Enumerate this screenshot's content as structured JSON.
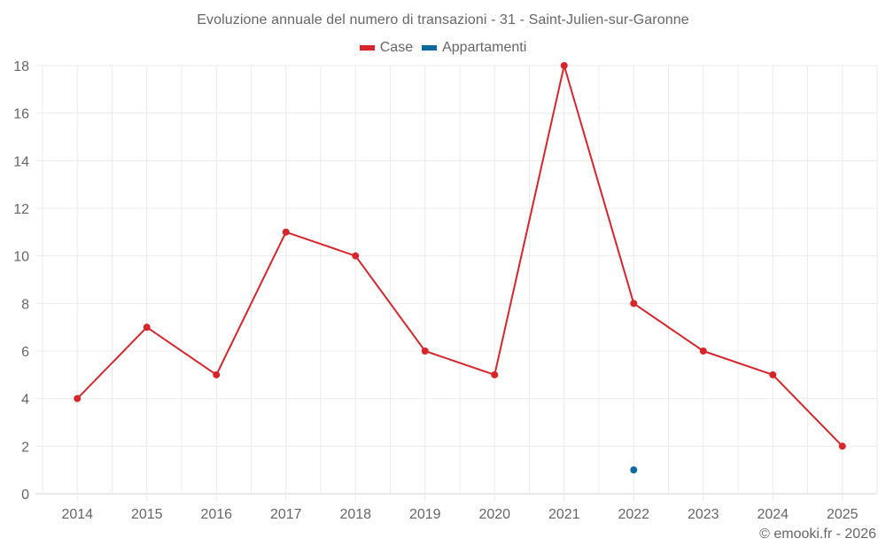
{
  "title": "Evoluzione annuale del numero di transazioni - 31 - Saint-Julien-sur-Garonne",
  "legend": [
    {
      "label": "Case",
      "color": "#d7262b"
    },
    {
      "label": "Appartamenti",
      "color": "#0a6aa1"
    }
  ],
  "credit": "© emooki.fr - 2026",
  "chart_data": {
    "type": "line",
    "title": "Evoluzione annuale del numero di transazioni - 31 - Saint-Julien-sur-Garonne",
    "xlabel": "",
    "ylabel": "",
    "categories": [
      "2014",
      "2015",
      "2016",
      "2017",
      "2018",
      "2019",
      "2020",
      "2021",
      "2022",
      "2023",
      "2024",
      "2025"
    ],
    "series": [
      {
        "name": "Case",
        "color": "#d7262b",
        "values": [
          4,
          7,
          5,
          11,
          10,
          6,
          5,
          18,
          8,
          6,
          5,
          2
        ]
      },
      {
        "name": "Appartamenti",
        "color": "#0a6aa1",
        "values": [
          null,
          null,
          null,
          null,
          null,
          null,
          null,
          null,
          1,
          null,
          null,
          null
        ]
      }
    ],
    "ylim": [
      0,
      18
    ],
    "yticks": [
      0,
      2,
      4,
      6,
      8,
      10,
      12,
      14,
      16,
      18
    ],
    "grid": true,
    "legend_position": "top"
  }
}
